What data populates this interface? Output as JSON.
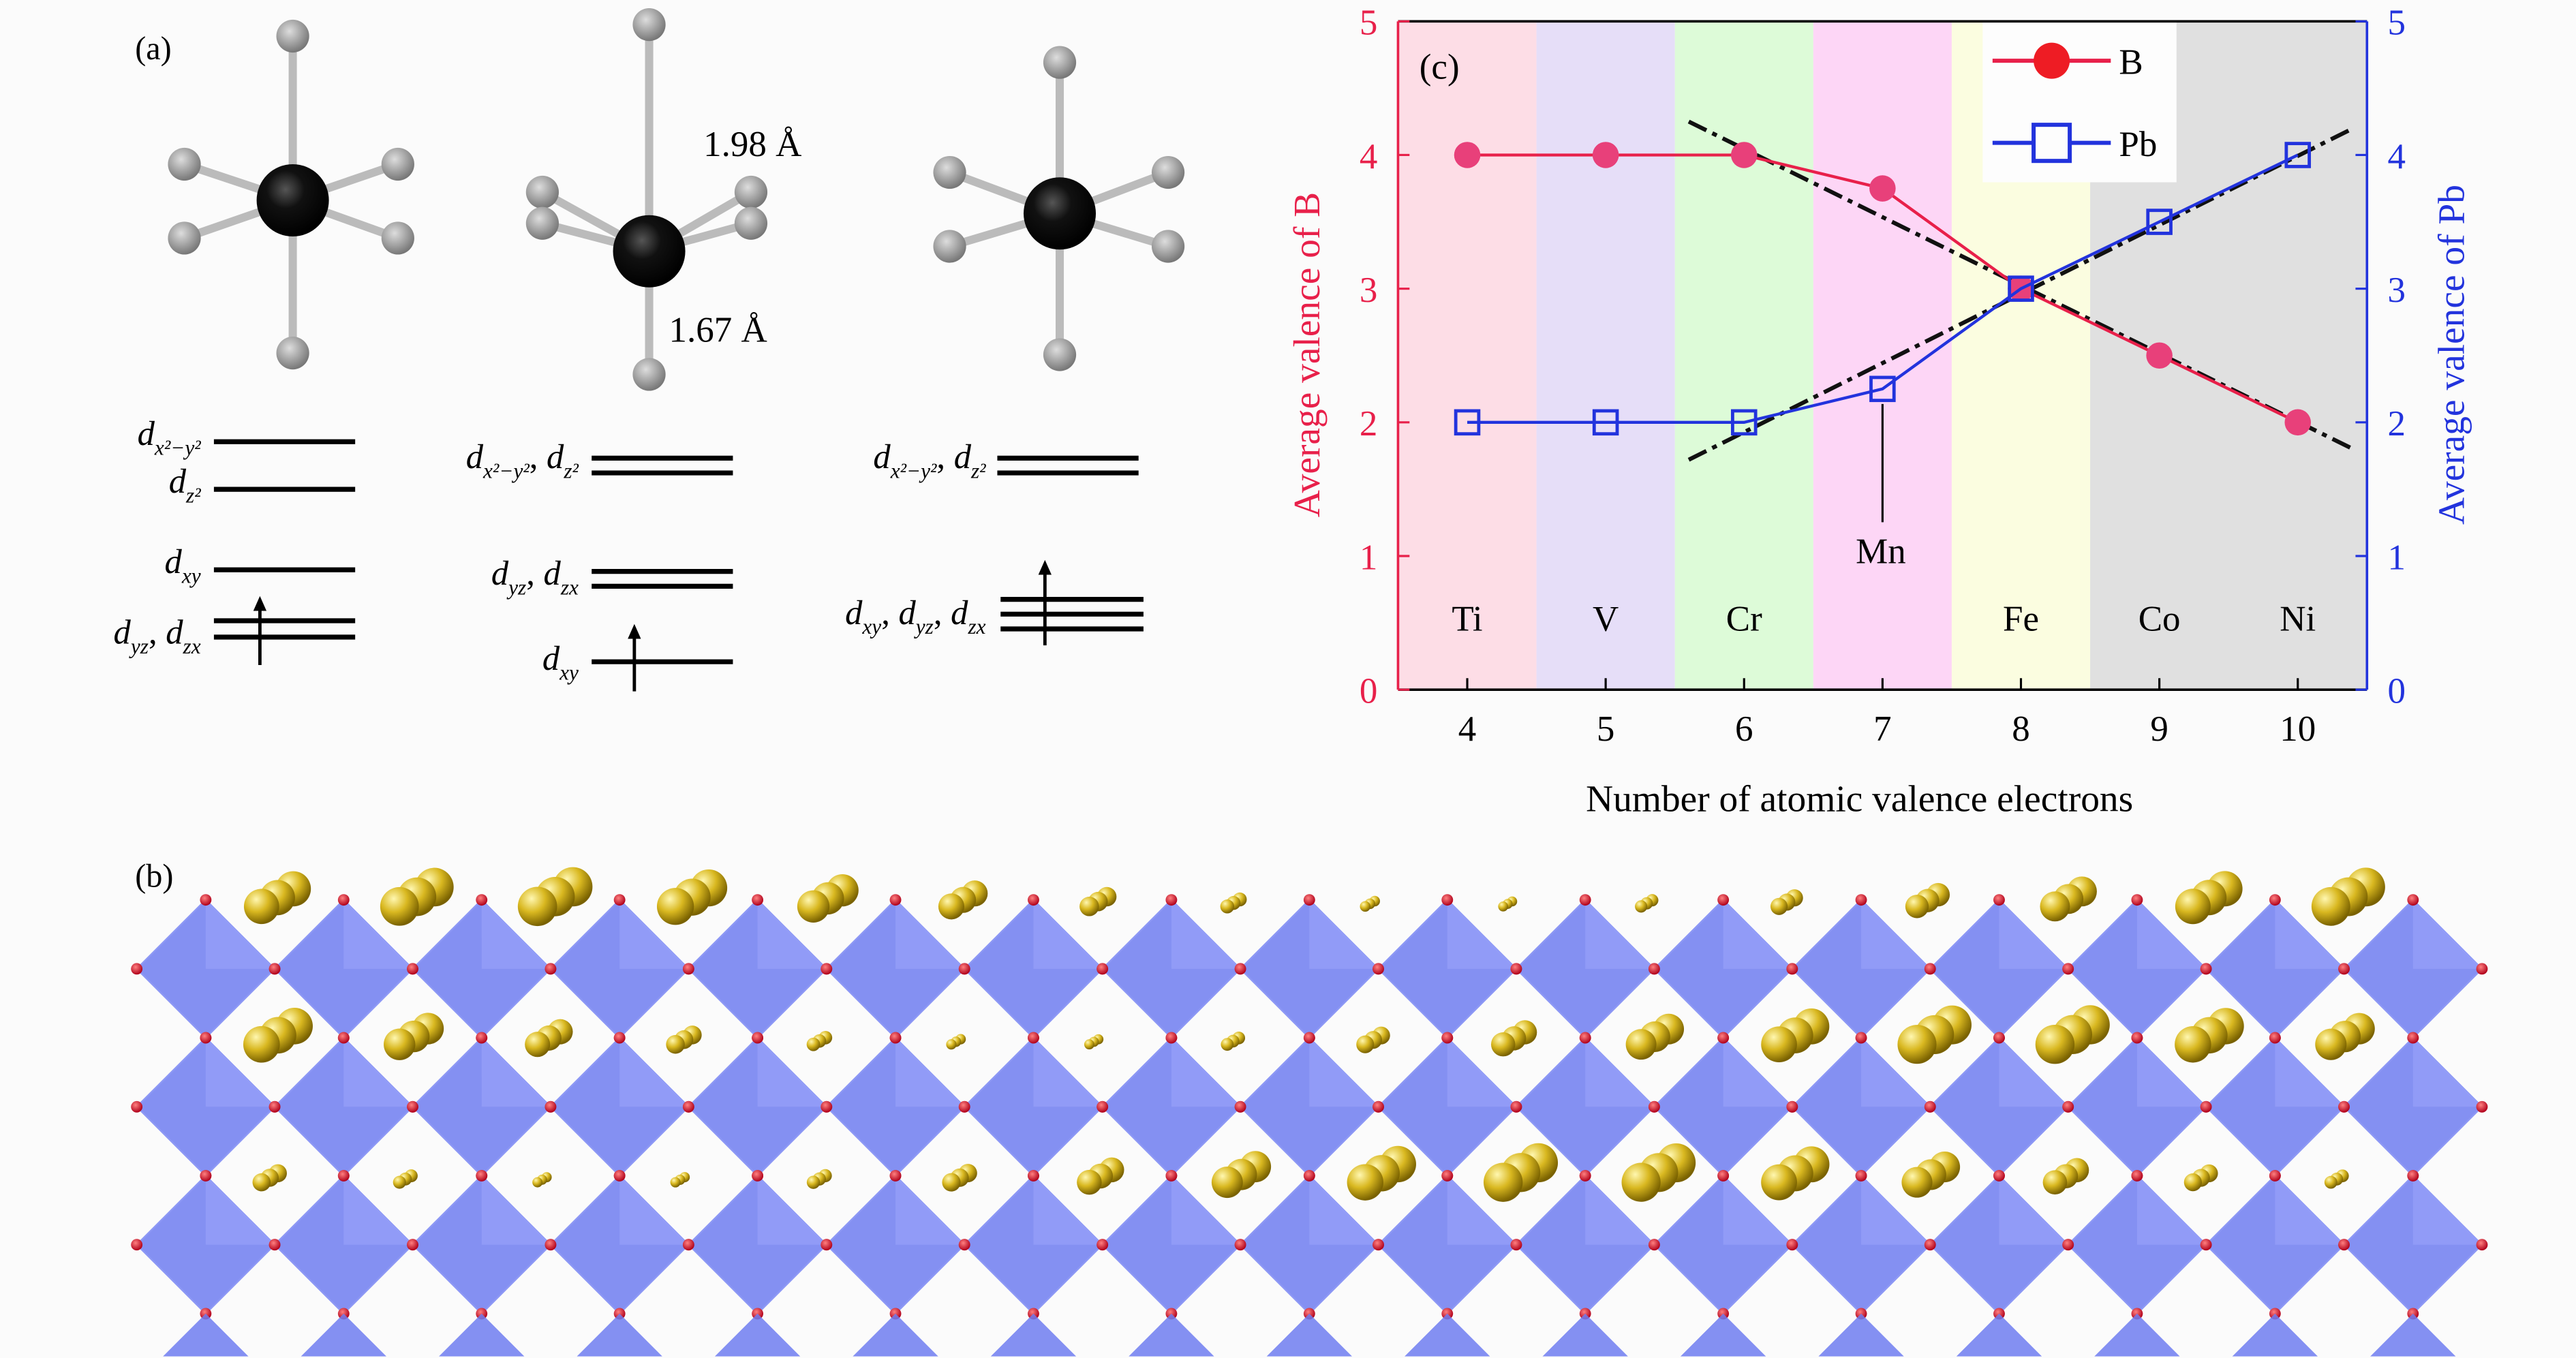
{
  "panel_a": {
    "label": "(a)",
    "bond_long": "1.98 Å",
    "bond_short": "1.67 Å",
    "levels": {
      "col1": [
        [
          [
            "d",
            "x²−y²"
          ]
        ],
        [
          [
            "d",
            "z²"
          ]
        ],
        [
          [
            "d",
            "xy"
          ]
        ],
        [
          [
            "d",
            "yz"
          ],
          [
            "d",
            "zx"
          ]
        ]
      ],
      "col2": [
        [
          [
            "d",
            "x²−y²"
          ],
          [
            "d",
            "z²"
          ]
        ],
        [
          [
            "d",
            "yz"
          ],
          [
            "d",
            "zx"
          ]
        ],
        [
          [
            "d",
            "xy"
          ]
        ]
      ],
      "col3": [
        [
          [
            "d",
            "x²−y²"
          ],
          [
            "d",
            "z²"
          ]
        ],
        [
          [
            "d",
            "xy"
          ],
          [
            "d",
            "yz"
          ],
          [
            "d",
            "zx"
          ]
        ]
      ]
    }
  },
  "panel_b": {
    "label": "(b)"
  },
  "colors": {
    "B": "#e8204a",
    "Pb": "#2233dd",
    "fit": "#111111"
  },
  "chart_data": {
    "type": "line",
    "panel_label": "(c)",
    "xlabel": "Number of atomic valence electrons",
    "ylabel_left": "Average valence of B",
    "ylabel_right": "Average valence of Pb",
    "xlim": [
      3.5,
      10.5
    ],
    "ylim_left": [
      0,
      5
    ],
    "ylim_right": [
      0,
      5
    ],
    "x": [
      4,
      5,
      6,
      7,
      8,
      9,
      10
    ],
    "xticks": [
      "4",
      "5",
      "6",
      "7",
      "8",
      "9",
      "10"
    ],
    "yticks_left": [
      "0",
      "1",
      "2",
      "3",
      "4",
      "5"
    ],
    "yticks_right": [
      "0",
      "1",
      "2",
      "3",
      "4",
      "5"
    ],
    "elements": [
      "Ti",
      "V",
      "Cr",
      "Mn",
      "Fe",
      "Co",
      "Ni"
    ],
    "element_bands": [
      {
        "name": "Ti",
        "from": 3.5,
        "to": 4.5,
        "color": "#fddde6"
      },
      {
        "name": "V",
        "from": 4.5,
        "to": 5.5,
        "color": "#e6def8"
      },
      {
        "name": "Cr",
        "from": 5.5,
        "to": 6.5,
        "color": "#ddfbd8"
      },
      {
        "name": "Mn",
        "from": 6.5,
        "to": 7.5,
        "color": "#fdd6f6"
      },
      {
        "name": "Fe",
        "from": 7.5,
        "to": 8.5,
        "color": "#fbfde0"
      },
      {
        "name": "Co",
        "from": 8.5,
        "to": 10.5,
        "color": "#e0e0e0"
      }
    ],
    "series": [
      {
        "name": "B",
        "axis": "left",
        "marker": "filled-circle",
        "values": [
          4,
          4,
          4,
          3.75,
          3,
          2.5,
          2
        ]
      },
      {
        "name": "Pb",
        "axis": "right",
        "marker": "open-square",
        "values": [
          2,
          2,
          2,
          2.25,
          3,
          3.5,
          4
        ]
      }
    ],
    "fit_lines": [
      {
        "name": "B-fit",
        "style": "dash-dot",
        "points": [
          [
            5.6,
            4.25
          ],
          [
            10.4,
            1.8
          ]
        ]
      },
      {
        "name": "Pb-fit",
        "style": "dash-dot",
        "points": [
          [
            5.6,
            1.72
          ],
          [
            10.4,
            4.2
          ]
        ]
      }
    ],
    "annotation": {
      "text": "Mn",
      "x": 7
    },
    "legend": {
      "placement": "top-right",
      "entries": [
        "B",
        "Pb"
      ]
    }
  }
}
